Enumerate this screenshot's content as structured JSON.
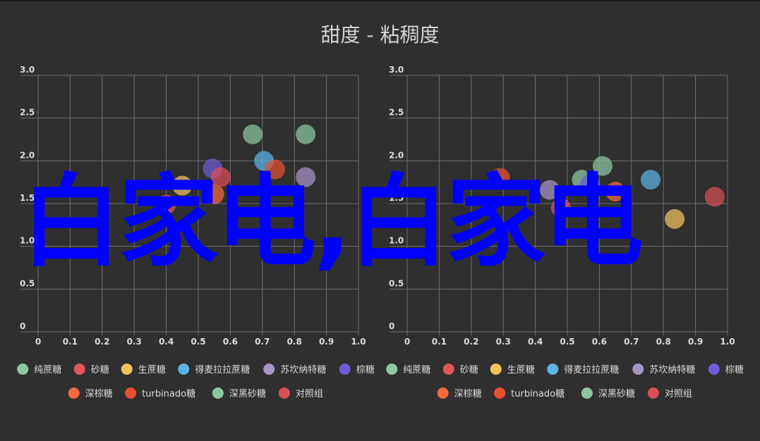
{
  "title": "甜度 - 粘稠度",
  "watermark": "白家电,白家电",
  "legend": [
    {
      "label": "纯蔗糖",
      "color": "#8cc7a1"
    },
    {
      "label": "砂糖",
      "color": "#e3545c"
    },
    {
      "label": "生蔗糖",
      "color": "#f2c25e"
    },
    {
      "label": "得麦拉拉蔗糖",
      "color": "#5ab4e5"
    },
    {
      "label": "苏坎纳特糖",
      "color": "#a895c7"
    },
    {
      "label": "棕糖",
      "color": "#6f5bd7"
    },
    {
      "label": "深棕糖",
      "color": "#f26a3d"
    },
    {
      "label": "turbinado糖",
      "color": "#e8512f"
    },
    {
      "label": "深黑砂糖",
      "color": "#8cc7a1"
    },
    {
      "label": "对照组",
      "color": "#d94f56"
    }
  ],
  "chart_data": [
    {
      "type": "scatter",
      "title": "甜度 - 粘稠度",
      "xlim": [
        0,
        1.0
      ],
      "ylim": [
        0,
        3.0
      ],
      "xticks": [
        "0",
        "0.1",
        "0.2",
        "0.3",
        "0.4",
        "0.5",
        "0.6",
        "0.7",
        "0.8",
        "0.9",
        "1.0"
      ],
      "yticks": [
        "0",
        "0.5",
        "1.0",
        "1.5",
        "2.0",
        "2.5",
        "3.0"
      ],
      "grid": true,
      "legend_position": "bottom",
      "series": [
        {
          "name": "纯蔗糖",
          "points": [
            {
              "x": 0.67,
              "y": 2.31
            },
            {
              "x": 0.835,
              "y": 2.31
            }
          ]
        },
        {
          "name": "砂糖",
          "points": [
            {
              "x": 0.4,
              "y": 1.49
            }
          ]
        },
        {
          "name": "生蔗糖",
          "points": [
            {
              "x": 0.45,
              "y": 1.71
            }
          ]
        },
        {
          "name": "得麦拉拉蔗糖",
          "points": [
            {
              "x": 0.705,
              "y": 2.0
            }
          ]
        },
        {
          "name": "苏坎纳特糖",
          "points": [
            {
              "x": 0.835,
              "y": 1.81
            }
          ]
        },
        {
          "name": "棕糖",
          "points": [
            {
              "x": 0.545,
              "y": 1.91
            }
          ]
        },
        {
          "name": "深棕糖",
          "points": [
            {
              "x": 0.55,
              "y": 1.61
            }
          ]
        },
        {
          "name": "turbinado糖",
          "points": [
            {
              "x": 0.74,
              "y": 1.9
            }
          ]
        },
        {
          "name": "深黑砂糖",
          "points": []
        },
        {
          "name": "对照组",
          "points": [
            {
              "x": 0.57,
              "y": 1.81
            }
          ]
        }
      ]
    },
    {
      "type": "scatter",
      "title": "",
      "xlim": [
        0,
        1.0
      ],
      "ylim": [
        0,
        3.0
      ],
      "xticks": [
        "0",
        "0.1",
        "0.2",
        "0.3",
        "0.4",
        "0.5",
        "0.6",
        "0.7",
        "0.8",
        "0.9",
        "1.0"
      ],
      "yticks": [
        "0",
        "0.5",
        "1.0",
        "1.5",
        "2.0",
        "2.5",
        "3.0"
      ],
      "grid": true,
      "legend_position": "bottom",
      "series": [
        {
          "name": "纯蔗糖",
          "points": [
            {
              "x": 0.545,
              "y": 1.78
            },
            {
              "x": 0.61,
              "y": 1.94
            }
          ]
        },
        {
          "name": "砂糖",
          "points": [
            {
              "x": 0.48,
              "y": 1.45
            }
          ]
        },
        {
          "name": "生蔗糖",
          "points": [
            {
              "x": 0.835,
              "y": 1.32
            }
          ]
        },
        {
          "name": "得麦拉拉蔗糖",
          "points": [
            {
              "x": 0.76,
              "y": 1.78
            }
          ]
        },
        {
          "name": "苏坎纳特糖",
          "points": [
            {
              "x": 0.445,
              "y": 1.66
            }
          ]
        },
        {
          "name": "棕糖",
          "points": [
            {
              "x": 0.57,
              "y": 1.72
            }
          ]
        },
        {
          "name": "深棕糖",
          "points": [
            {
              "x": 0.65,
              "y": 1.64
            }
          ]
        },
        {
          "name": "turbinado糖",
          "points": [
            {
              "x": 0.29,
              "y": 1.8
            }
          ]
        },
        {
          "name": "深黑砂糖",
          "points": []
        },
        {
          "name": "对照组",
          "points": [
            {
              "x": 0.96,
              "y": 1.58
            }
          ]
        }
      ]
    }
  ]
}
